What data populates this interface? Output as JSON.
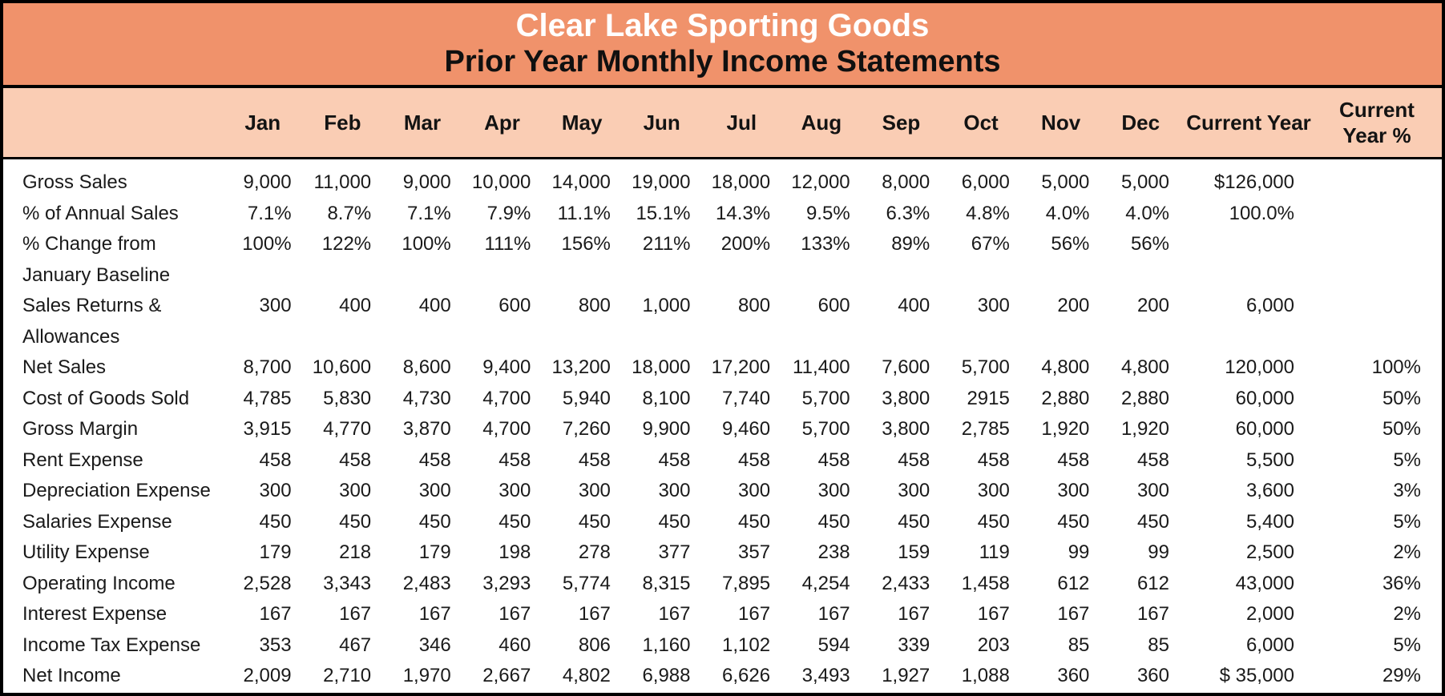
{
  "header": {
    "title": "Clear Lake Sporting Goods",
    "subtitle": "Prior Year Monthly Income Statements"
  },
  "colors": {
    "title_band": "#F0926B",
    "column_header_band": "#FACDB4",
    "border": "#000000",
    "title_text": "#FFFFFF",
    "body_text": "#1A1A1A"
  },
  "columns": [
    "Jan",
    "Feb",
    "Mar",
    "Apr",
    "May",
    "Jun",
    "Jul",
    "Aug",
    "Sep",
    "Oct",
    "Nov",
    "Dec",
    "Current Year",
    "Current Year %"
  ],
  "rows": [
    {
      "label": "Gross Sales",
      "values": [
        "9,000",
        "11,000",
        "9,000",
        "10,000",
        "14,000",
        "19,000",
        "18,000",
        "12,000",
        "8,000",
        "6,000",
        "5,000",
        "5,000",
        "$126,000",
        ""
      ]
    },
    {
      "label": "% of Annual Sales",
      "values": [
        "7.1%",
        "8.7%",
        "7.1%",
        "7.9%",
        "11.1%",
        "15.1%",
        "14.3%",
        "9.5%",
        "6.3%",
        "4.8%",
        "4.0%",
        "4.0%",
        "100.0%",
        ""
      ]
    },
    {
      "label": "% Change from\nJanuary Baseline",
      "values": [
        "100%",
        "122%",
        "100%",
        "111%",
        "156%",
        "211%",
        "200%",
        "133%",
        "89%",
        "67%",
        "56%",
        "56%",
        "",
        ""
      ]
    },
    {
      "label": "Sales Returns &\nAllowances",
      "values": [
        "300",
        "400",
        "400",
        "600",
        "800",
        "1,000",
        "800",
        "600",
        "400",
        "300",
        "200",
        "200",
        "6,000",
        ""
      ]
    },
    {
      "label": "Net Sales",
      "values": [
        "8,700",
        "10,600",
        "8,600",
        "9,400",
        "13,200",
        "18,000",
        "17,200",
        "11,400",
        "7,600",
        "5,700",
        "4,800",
        "4,800",
        "120,000",
        "100%"
      ]
    },
    {
      "label": "Cost of Goods Sold",
      "values": [
        "4,785",
        "5,830",
        "4,730",
        "4,700",
        "5,940",
        "8,100",
        "7,740",
        "5,700",
        "3,800",
        "2915",
        "2,880",
        "2,880",
        "60,000",
        "50%"
      ]
    },
    {
      "label": "Gross Margin",
      "values": [
        "3,915",
        "4,770",
        "3,870",
        "4,700",
        "7,260",
        "9,900",
        "9,460",
        "5,700",
        "3,800",
        "2,785",
        "1,920",
        "1,920",
        "60,000",
        "50%"
      ]
    },
    {
      "label": "Rent Expense",
      "values": [
        "458",
        "458",
        "458",
        "458",
        "458",
        "458",
        "458",
        "458",
        "458",
        "458",
        "458",
        "458",
        "5,500",
        "5%"
      ]
    },
    {
      "label": "Depreciation Expense",
      "values": [
        "300",
        "300",
        "300",
        "300",
        "300",
        "300",
        "300",
        "300",
        "300",
        "300",
        "300",
        "300",
        "3,600",
        "3%"
      ]
    },
    {
      "label": "Salaries Expense",
      "values": [
        "450",
        "450",
        "450",
        "450",
        "450",
        "450",
        "450",
        "450",
        "450",
        "450",
        "450",
        "450",
        "5,400",
        "5%"
      ]
    },
    {
      "label": "Utility Expense",
      "values": [
        "179",
        "218",
        "179",
        "198",
        "278",
        "377",
        "357",
        "238",
        "159",
        "119",
        "99",
        "99",
        "2,500",
        "2%"
      ]
    },
    {
      "label": "Operating Income",
      "values": [
        "2,528",
        "3,343",
        "2,483",
        "3,293",
        "5,774",
        "8,315",
        "7,895",
        "4,254",
        "2,433",
        "1,458",
        "612",
        "612",
        "43,000",
        "36%"
      ]
    },
    {
      "label": "Interest Expense",
      "values": [
        "167",
        "167",
        "167",
        "167",
        "167",
        "167",
        "167",
        "167",
        "167",
        "167",
        "167",
        "167",
        "2,000",
        "2%"
      ]
    },
    {
      "label": "Income Tax Expense",
      "values": [
        "353",
        "467",
        "346",
        "460",
        "806",
        "1,160",
        "1,102",
        "594",
        "339",
        "203",
        "85",
        "85",
        "6,000",
        "5%"
      ]
    },
    {
      "label": "Net Income",
      "values": [
        "2,009",
        "2,710",
        "1,970",
        "2,667",
        "4,802",
        "6,988",
        "6,626",
        "3,493",
        "1,927",
        "1,088",
        "360",
        "360",
        "$ 35,000",
        "29%"
      ]
    }
  ]
}
